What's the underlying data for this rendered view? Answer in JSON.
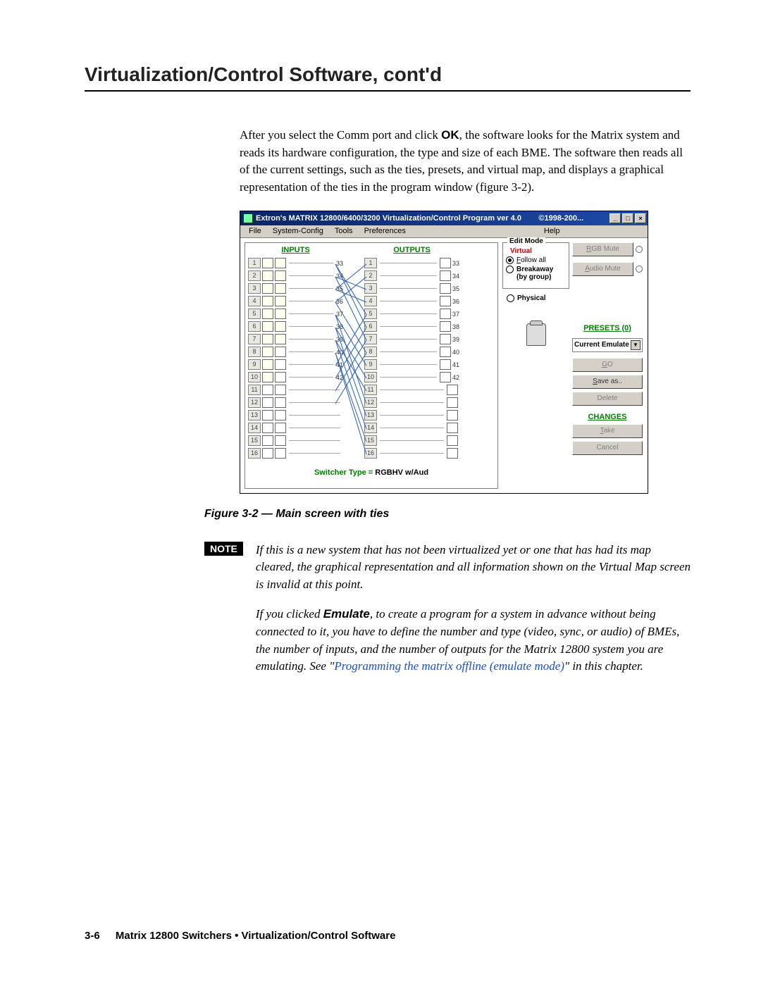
{
  "page": {
    "chapter_title": "Virtualization/Control Software, cont'd",
    "intro_pre": "After you select the Comm port and click ",
    "intro_ok": "OK",
    "intro_post": ", the software looks for the Matrix system and reads its hardware configuration, the type and size of each BME.  The software then reads all of the current settings, such as the ties, presets, and virtual map, and displays a graphical representation of the ties in the program window (figure 3-2).",
    "fig_caption": "Figure 3-2 — Main screen with ties",
    "note_label": "NOTE",
    "note1": "If this is a new system that has not been virtualized yet or one that has had its map cleared, the graphical representation and all information shown on the Virtual Map screen is invalid at this point.",
    "note2_pre": "If you clicked ",
    "note2_em": "Emulate",
    "note2_mid": ", to create a program for a system in advance without being connected to it, you have to define the number and type (video, sync, or audio) of BMEs, the number of inputs, and the number of outputs for the Matrix 12800 system you are emulating.  See \"",
    "note2_ref": "Programming the matrix offline (emulate mode)",
    "note2_post": "\" in this chapter.",
    "footer_pagenum": "3-6",
    "footer_text": "Matrix 12800 Switchers • Virtualization/Control Software"
  },
  "win": {
    "title": "Extron's MATRIX 12800/6400/3200 Virtualization/Control Program   ver 4.0",
    "copyright": "©1998-200...",
    "menus": [
      "File",
      "System-Config",
      "Tools",
      "Preferences"
    ],
    "menu_help": "Help",
    "inputs_label": "INPUTS",
    "outputs_label": "OUTPUTS",
    "input_left_nums": [
      1,
      2,
      3,
      4,
      5,
      6,
      7,
      8,
      9,
      10,
      11,
      12,
      13,
      14,
      15,
      16
    ],
    "input_right_nums": [
      33,
      34,
      35,
      36,
      37,
      38,
      39,
      40,
      41,
      42,
      "",
      "",
      "",
      "",
      "",
      ""
    ],
    "output_left_nums": [
      1,
      2,
      3,
      4,
      5,
      6,
      7,
      8,
      9,
      10,
      11,
      12,
      13,
      14,
      15,
      16
    ],
    "output_right_nums": [
      33,
      34,
      35,
      36,
      37,
      38,
      39,
      40,
      41,
      42,
      "",
      "",
      "",
      "",
      "",
      ""
    ],
    "switcher_key": "Switcher Type = ",
    "switcher_val": "RGBHV w/Aud",
    "editmode_title": "Edit Mode",
    "virtual_label": "Virtual",
    "radio_followall": "Follow all",
    "radio_breakaway_a": "Breakaway",
    "radio_breakaway_b": "(by group)",
    "radio_physical": "Physical",
    "btn_rgbmute": "RGB Mute",
    "btn_audiomute": "Audio Mute",
    "presets_title": "PRESETS (0)",
    "combo_value": "Current Emulate",
    "btn_go": "GO",
    "btn_saveas": "Save as..",
    "btn_delete": "Delete",
    "changes_title": "CHANGES",
    "btn_take": "Take",
    "btn_cancel": "Cancel",
    "colors": {
      "titlebar_start": "#0a2468",
      "titlebar_end": "#1e4ca8",
      "green": "#008000",
      "red": "#c00000",
      "btn_face": "#d4d0c8",
      "tie_line": "#2a5fb0"
    },
    "ties": [
      {
        "in": 1,
        "out": 5
      },
      {
        "in": 1,
        "out": 6
      },
      {
        "in": 2,
        "out": 3
      },
      {
        "in": 2,
        "out": 7
      },
      {
        "in": 3,
        "out": 1
      },
      {
        "in": 3,
        "out": 4
      },
      {
        "in": 4,
        "out": 2
      },
      {
        "in": 4,
        "out": 8
      },
      {
        "in": 5,
        "out": 9
      },
      {
        "in": 5,
        "out": 12
      },
      {
        "in": 6,
        "out": 10
      },
      {
        "in": 6,
        "out": 13
      },
      {
        "in": 7,
        "out": 11
      },
      {
        "in": 7,
        "out": 14
      },
      {
        "in": 8,
        "out": 15
      },
      {
        "in": 8,
        "out": 16
      },
      {
        "in": 9,
        "out": 5
      },
      {
        "in": 10,
        "out": 6
      },
      {
        "in": 11,
        "out": 7
      },
      {
        "in": 12,
        "out": 8
      }
    ]
  }
}
